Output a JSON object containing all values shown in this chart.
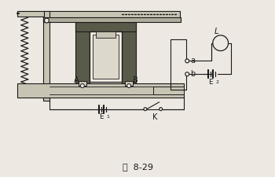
{
  "bg_color": "#ede9e2",
  "line_color": "#1a1a1a",
  "dark_fill": "#5a5a4a",
  "med_fill": "#8a8870",
  "light_fill": "#c8c4b4",
  "white_fill": "#f0ece4",
  "figure_label": "图  8-29",
  "label_A": "A",
  "label_B": "B",
  "label_a": "a",
  "label_b": "b",
  "label_E1": "E",
  "label_E2": "E",
  "label_L": "L",
  "label_K": "K"
}
